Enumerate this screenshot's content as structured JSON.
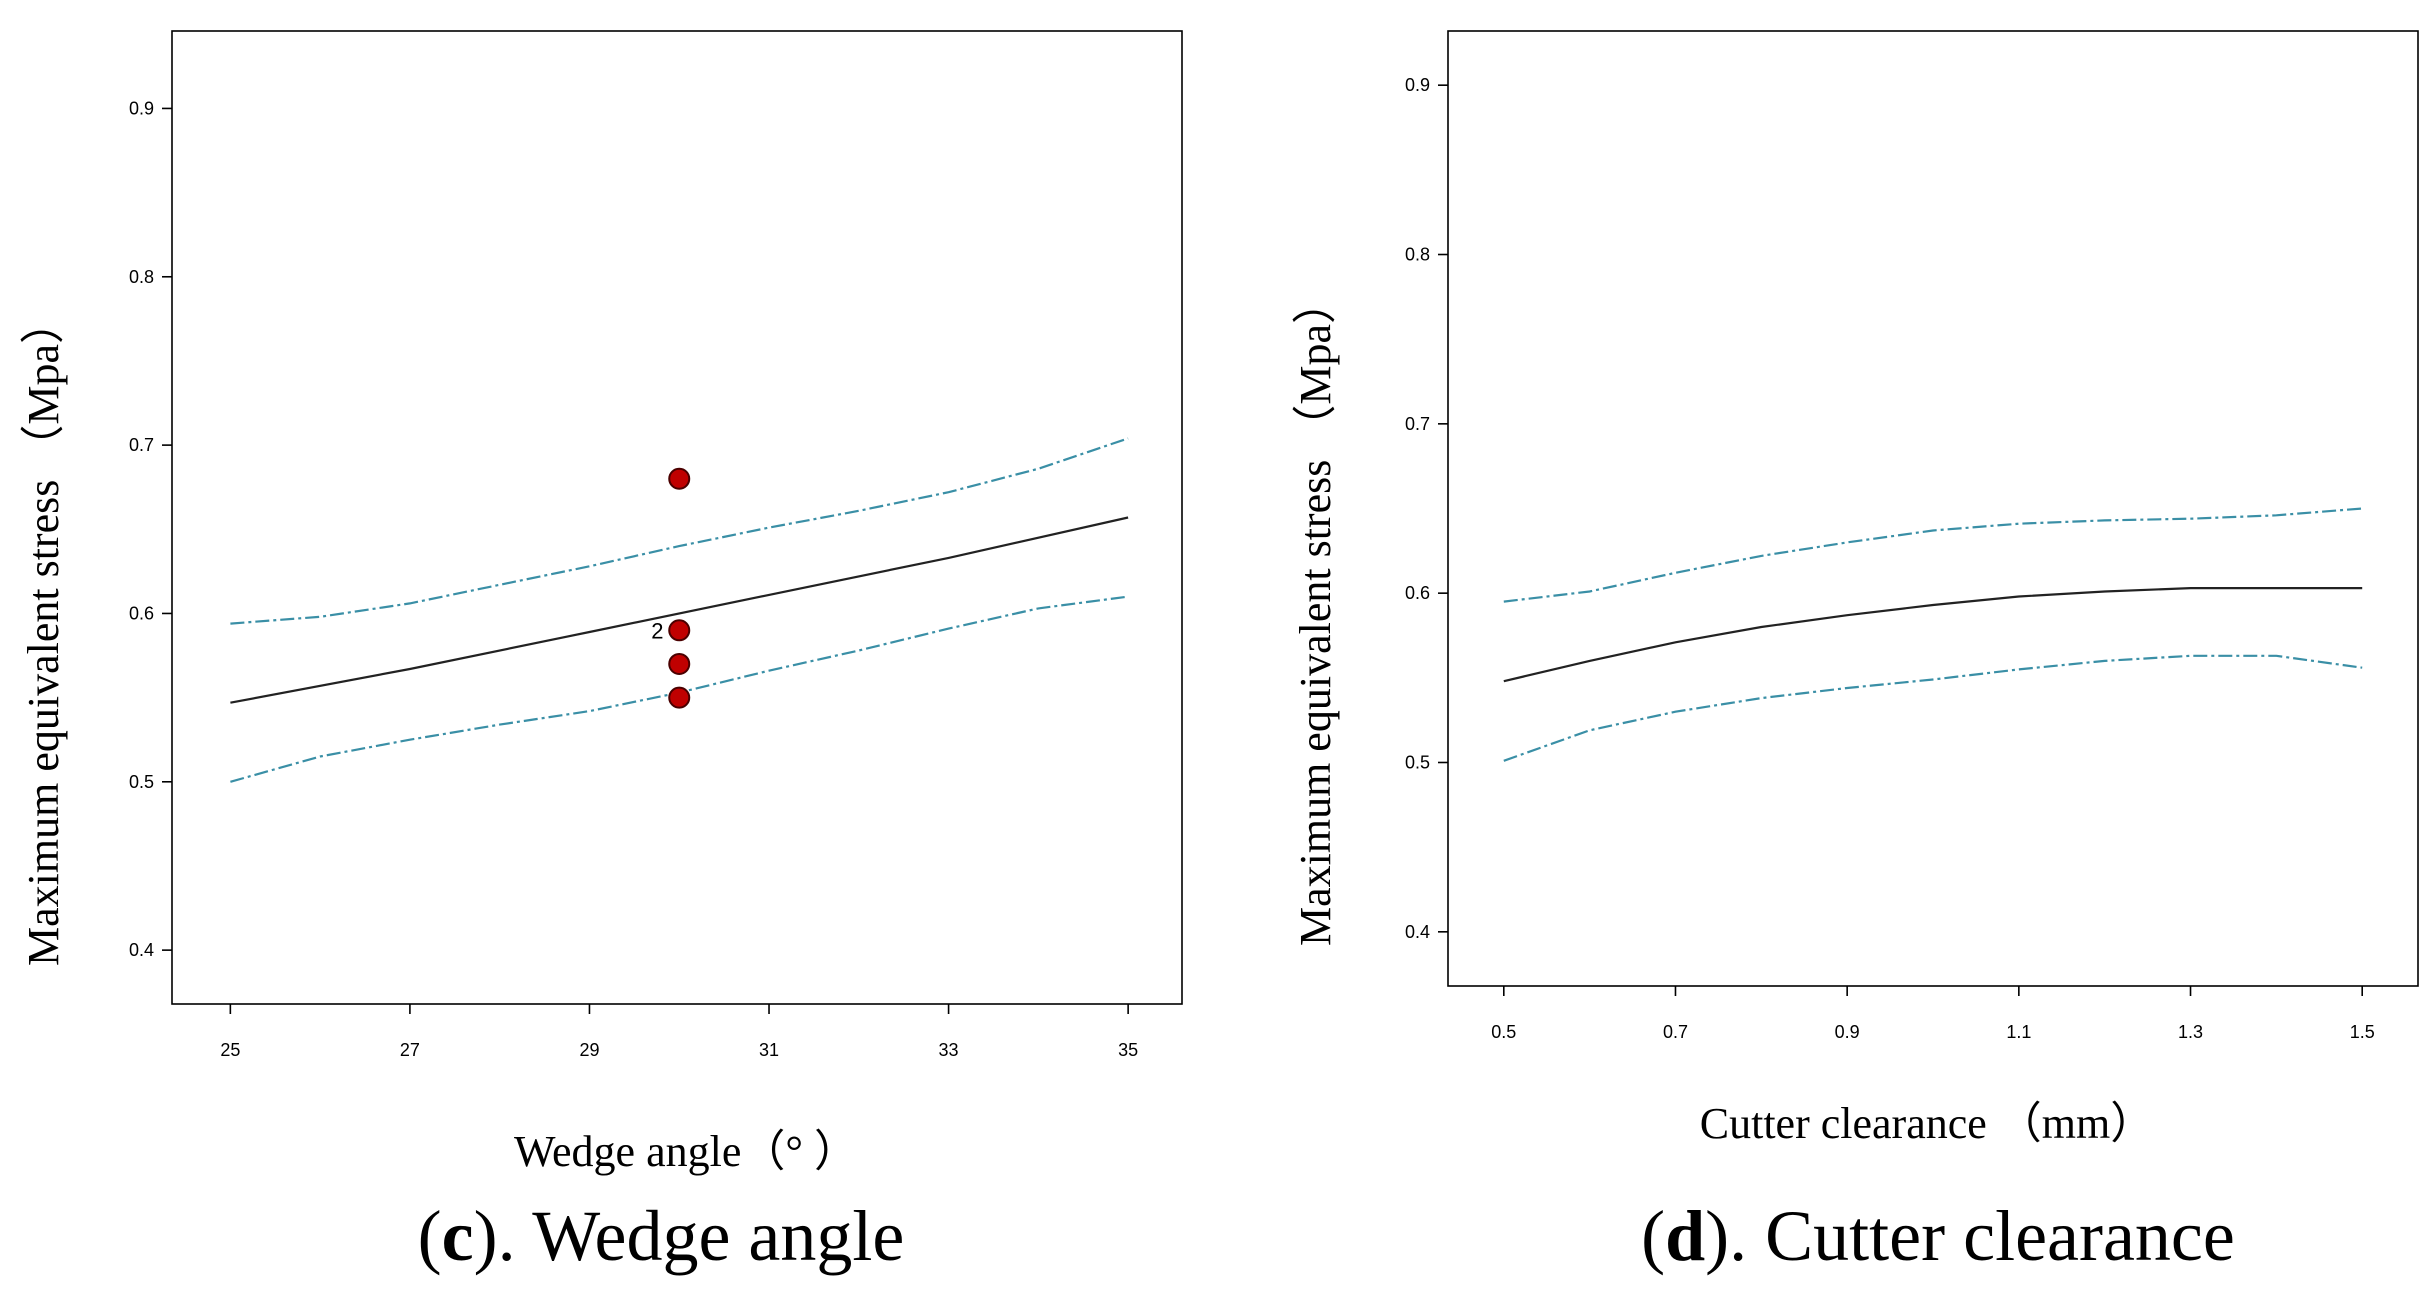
{
  "chart_data": [
    {
      "type": "line",
      "panel": "c",
      "caption_letter": "c",
      "caption_text": "). Wedge angle",
      "caption_open": "(",
      "xlabel": "Wedge angle（°  ）",
      "ylabel": "Maximum equivalent stress （Mpa）",
      "xlim": [
        24.35,
        35.6
      ],
      "ylim": [
        0.368,
        0.946
      ],
      "xticks": [
        25,
        27,
        29,
        31,
        33,
        35
      ],
      "yticks": [
        0.4,
        0.5,
        0.6,
        0.7,
        0.8,
        0.9
      ],
      "xtick_labels": [
        "25",
        "27",
        "29",
        "31",
        "33",
        "35"
      ],
      "ytick_labels": [
        "0.4",
        "0.5",
        "0.6",
        "0.7",
        "0.8",
        "0.9"
      ],
      "series": [
        {
          "name": "fit",
          "style": "solid",
          "color": "#222222",
          "x": [
            25,
            27,
            29,
            31,
            33,
            35
          ],
          "y": [
            0.547,
            0.567,
            0.589,
            0.611,
            0.633,
            0.657
          ]
        },
        {
          "name": "upper CI",
          "style": "dashed",
          "color": "#3a8fa6",
          "x": [
            25,
            26,
            27,
            28,
            29,
            30,
            31,
            32,
            33,
            34,
            35
          ],
          "y": [
            0.594,
            0.598,
            0.606,
            0.617,
            0.628,
            0.64,
            0.651,
            0.661,
            0.672,
            0.686,
            0.704
          ]
        },
        {
          "name": "lower CI",
          "style": "dashed",
          "color": "#3a8fa6",
          "x": [
            25,
            26,
            27,
            28,
            29,
            30,
            31,
            32,
            33,
            34,
            35
          ],
          "y": [
            0.5,
            0.515,
            0.525,
            0.534,
            0.542,
            0.553,
            0.566,
            0.578,
            0.591,
            0.603,
            0.61
          ]
        }
      ],
      "points": [
        {
          "x": 30,
          "y": 0.68,
          "label": ""
        },
        {
          "x": 30,
          "y": 0.59,
          "label": "2"
        },
        {
          "x": 30,
          "y": 0.57,
          "label": ""
        },
        {
          "x": 30,
          "y": 0.55,
          "label": ""
        }
      ]
    },
    {
      "type": "line",
      "panel": "d",
      "caption_letter": "d",
      "caption_text": "). Cutter clearance",
      "caption_open": "(",
      "xlabel": "Cutter clearance  （mm）",
      "ylabel": "Maximum equivalent stress （Mpa）",
      "xlim": [
        0.435,
        1.565
      ],
      "ylim": [
        0.368,
        0.932
      ],
      "xticks": [
        0.5,
        0.7,
        0.9,
        1.1,
        1.3,
        1.5
      ],
      "yticks": [
        0.4,
        0.5,
        0.6,
        0.7,
        0.8,
        0.9
      ],
      "xtick_labels": [
        "0.5",
        "0.7",
        "0.9",
        "1.1",
        "1.3",
        "1.5"
      ],
      "ytick_labels": [
        "0.4",
        "0.5",
        "0.6",
        "0.7",
        "0.8",
        "0.9"
      ],
      "series": [
        {
          "name": "fit",
          "style": "solid",
          "color": "#222222",
          "x": [
            0.5,
            0.6,
            0.7,
            0.8,
            0.9,
            1.0,
            1.1,
            1.2,
            1.3,
            1.4,
            1.5
          ],
          "y": [
            0.548,
            0.56,
            0.571,
            0.58,
            0.587,
            0.593,
            0.598,
            0.601,
            0.603,
            0.603,
            0.603
          ]
        },
        {
          "name": "upper CI",
          "style": "dashed",
          "color": "#3a8fa6",
          "x": [
            0.5,
            0.6,
            0.7,
            0.8,
            0.9,
            1.0,
            1.1,
            1.2,
            1.3,
            1.4,
            1.5
          ],
          "y": [
            0.595,
            0.601,
            0.612,
            0.622,
            0.63,
            0.637,
            0.641,
            0.643,
            0.644,
            0.646,
            0.65
          ]
        },
        {
          "name": "lower CI",
          "style": "dashed",
          "color": "#3a8fa6",
          "x": [
            0.5,
            0.6,
            0.7,
            0.8,
            0.9,
            1.0,
            1.1,
            1.2,
            1.3,
            1.4,
            1.5
          ],
          "y": [
            0.501,
            0.519,
            0.53,
            0.538,
            0.544,
            0.549,
            0.555,
            0.56,
            0.563,
            0.563,
            0.556
          ]
        }
      ],
      "points": []
    }
  ]
}
